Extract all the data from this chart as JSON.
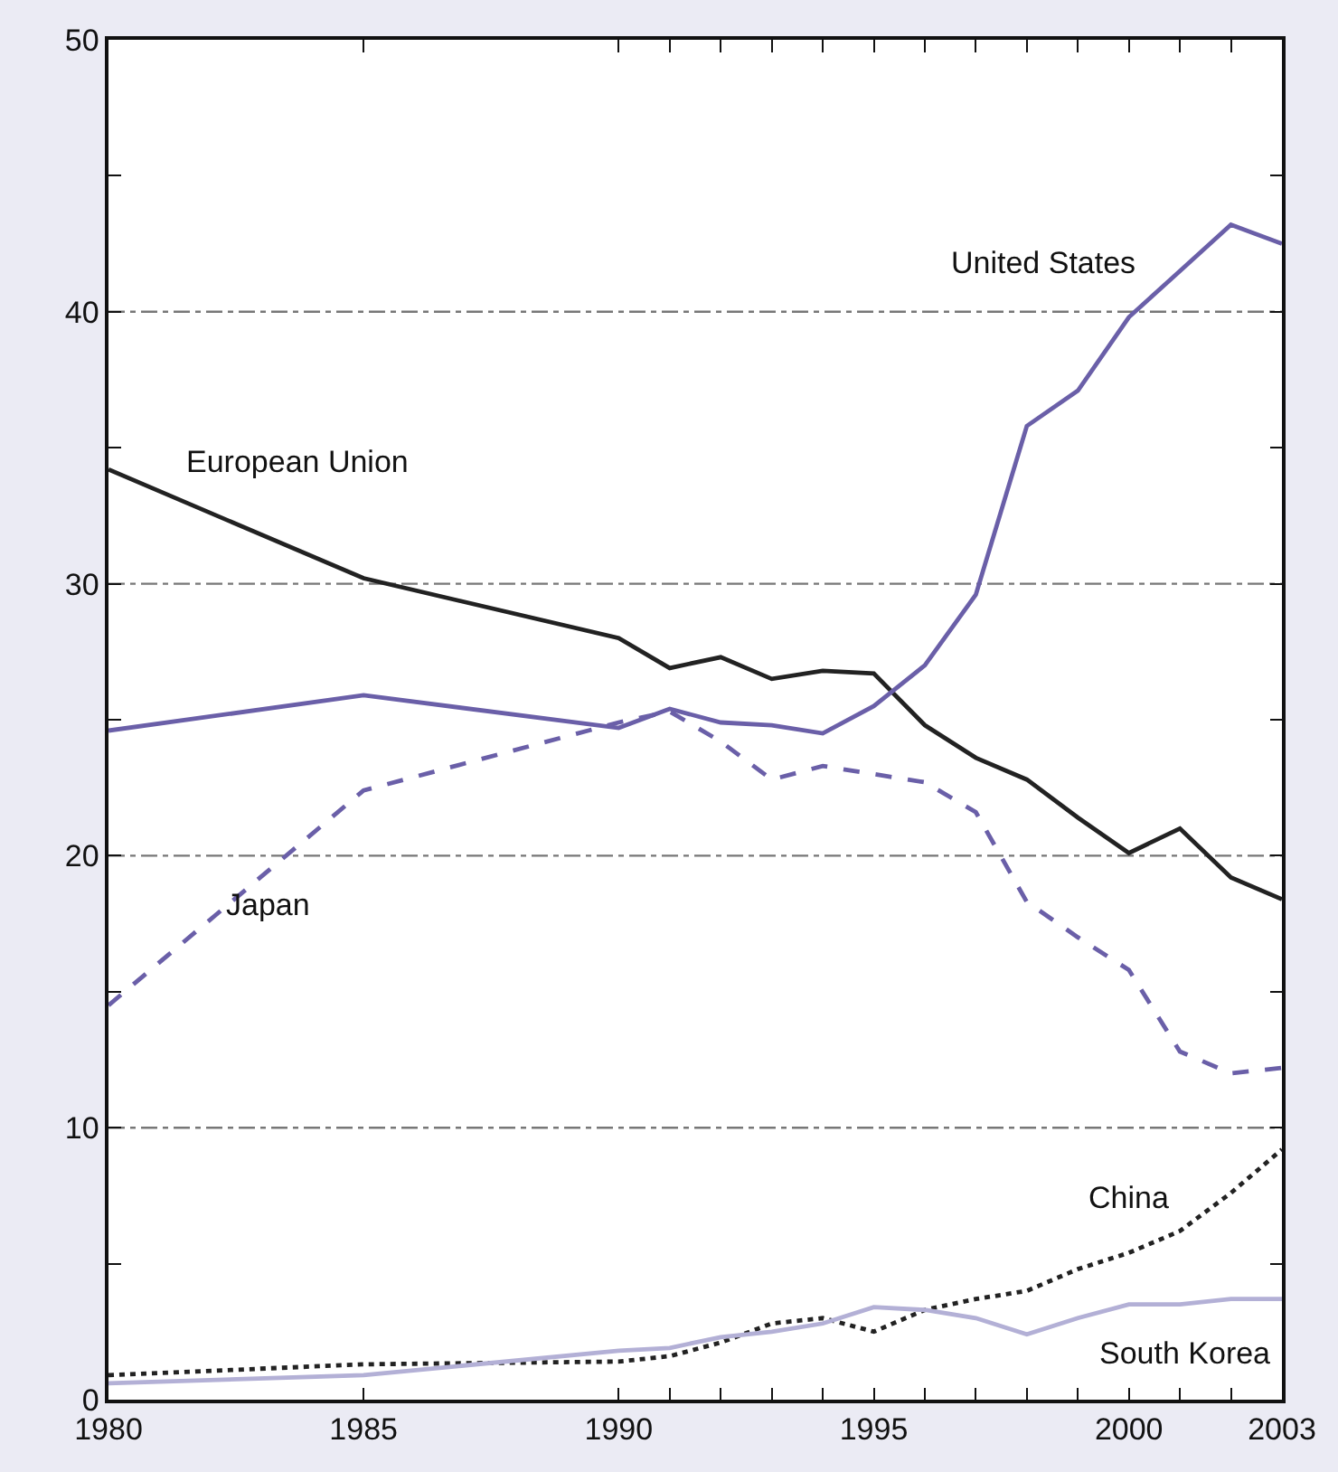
{
  "chart_data": {
    "type": "line",
    "x": [
      1980,
      1985,
      1990,
      1991,
      1992,
      1993,
      1994,
      1995,
      1996,
      1997,
      1998,
      1999,
      2000,
      2001,
      2002,
      2003
    ],
    "series": [
      {
        "color": "#222222",
        "line_style": "solid",
        "values": [
          34.2,
          30.2,
          28.0,
          26.9,
          27.3,
          26.5,
          26.8,
          26.7,
          24.8,
          23.6,
          22.8,
          21.4,
          20.1,
          21.0,
          19.2,
          18.4
        ]
      },
      {
        "color": "#6a5fa8",
        "line_style": "solid",
        "values": [
          24.6,
          25.9,
          24.7,
          25.4,
          24.9,
          24.8,
          24.5,
          25.5,
          27.0,
          29.6,
          35.8,
          37.1,
          39.8,
          41.5,
          43.2,
          42.5
        ]
      },
      {
        "color": "#6a5fa8",
        "line_style": "dashed",
        "values": [
          14.5,
          22.4,
          24.9,
          25.3,
          24.2,
          22.8,
          23.3,
          23.0,
          22.7,
          21.6,
          18.3,
          17.0,
          15.8,
          12.8,
          12.0,
          12.2
        ]
      },
      {
        "color": "#222222",
        "line_style": "dotted",
        "values": [
          0.9,
          1.3,
          1.4,
          1.6,
          2.1,
          2.8,
          3.0,
          2.5,
          3.3,
          3.7,
          4.0,
          4.8,
          5.4,
          6.2,
          7.6,
          9.2
        ]
      },
      {
        "color": "#b3b0d6",
        "line_style": "solid",
        "values": [
          0.6,
          0.9,
          1.8,
          1.9,
          2.3,
          2.5,
          2.8,
          3.4,
          3.3,
          3.0,
          2.4,
          3.0,
          3.5,
          3.5,
          3.7,
          3.7
        ]
      }
    ],
    "annotations": [
      "European Union",
      "United States",
      "Japan",
      "China",
      "South Korea"
    ],
    "xlim": [
      1980,
      2003
    ],
    "xticks": [
      1980,
      1985,
      1990,
      {
        "value": 1991,
        "label": null
      },
      {
        "value": 1992,
        "label": null
      },
      {
        "value": 1993,
        "label": null
      },
      {
        "value": 1994,
        "label": null
      },
      1995,
      {
        "value": 1996,
        "label": null
      },
      {
        "value": 1997,
        "label": null
      },
      {
        "value": 1998,
        "label": null
      },
      {
        "value": 1999,
        "label": null
      },
      2000,
      {
        "value": 2001,
        "label": null
      },
      {
        "value": 2002,
        "label": null
      },
      2003
    ],
    "ylim": [
      0,
      50
    ],
    "yticks": [
      0,
      {
        "value": 5,
        "label": null
      },
      10,
      {
        "value": 15,
        "label": null
      },
      20,
      {
        "value": 25,
        "label": null
      },
      30,
      {
        "value": 35,
        "label": null
      },
      40,
      {
        "value": 45,
        "label": null
      },
      50
    ],
    "grid": "y",
    "marker": "none"
  }
}
